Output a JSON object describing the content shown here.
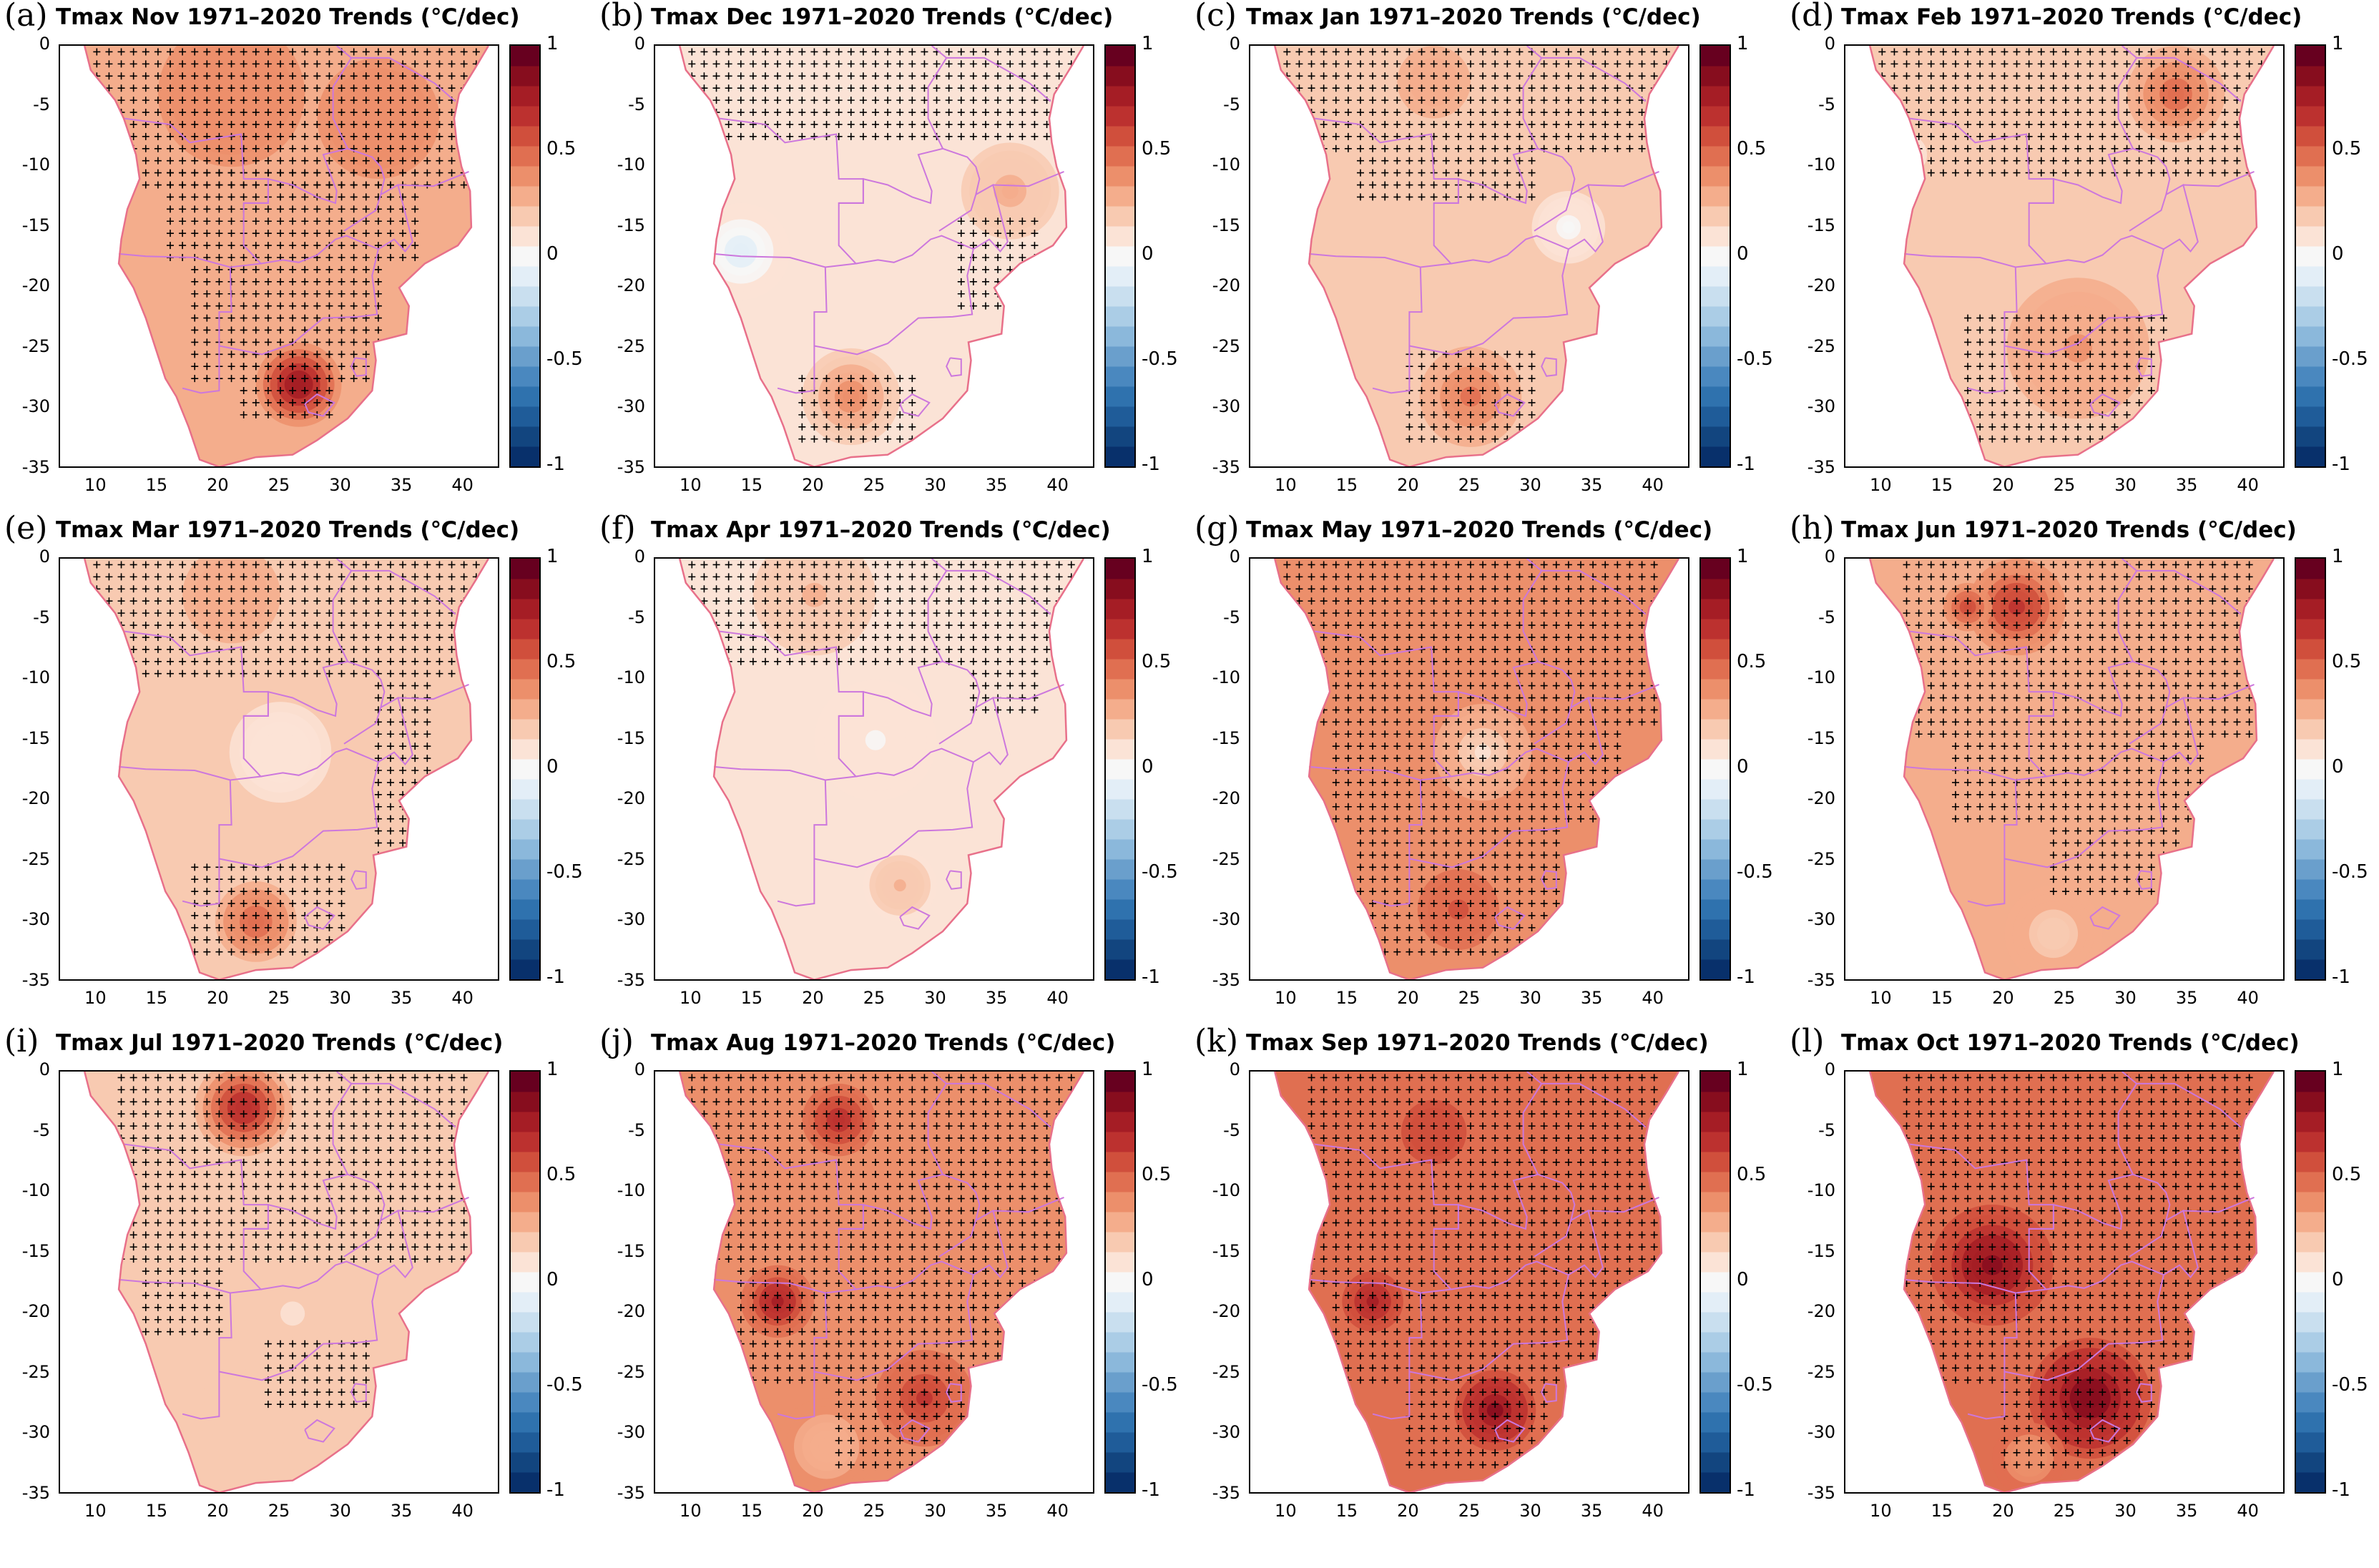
{
  "figure": {
    "x_ticks": [
      "10",
      "15",
      "20",
      "25",
      "30",
      "35",
      "40"
    ],
    "y_ticks": [
      "0",
      "-5",
      "-10",
      "-15",
      "-20",
      "-25",
      "-30",
      "-35"
    ],
    "colorbar_ticks": [
      "1",
      "0.5",
      "0",
      "-0.5",
      "-1"
    ],
    "colors": {
      "ocean": "#ffffff",
      "border": "#cc77dd",
      "coast": "#e8708a",
      "stipple": "#000000"
    },
    "colorbar_scale": [
      "#08306b",
      "#12457f",
      "#1f5c99",
      "#2f72ae",
      "#4a88bf",
      "#6a9fcc",
      "#8bb8db",
      "#abcde6",
      "#c9dfef",
      "#e3eef7",
      "#f7f7f7",
      "#fbe3d6",
      "#f8cab1",
      "#f4ad8c",
      "#ec8f6b",
      "#e06f51",
      "#d04f3c",
      "#bc312f",
      "#a51d25",
      "#870d1e",
      "#67001f"
    ]
  },
  "panels": [
    {
      "letter": "(a)",
      "title": "Tmax Nov 1971–2020 Trends (℃/dec)",
      "base": 0.34,
      "hotspots": [
        {
          "lon": 26.5,
          "lat": -28,
          "r": 3.5,
          "v": 0.5
        },
        {
          "lon": 21,
          "lat": -4,
          "r": 6,
          "v": 0.1
        },
        {
          "lon": 33,
          "lat": -6,
          "r": 5,
          "v": 0.1
        }
      ],
      "stipple": [
        [
          0,
          -12,
          10,
          42
        ],
        [
          -10,
          -18,
          16,
          36
        ],
        [
          -18,
          -28,
          18,
          33
        ],
        [
          -25,
          -31,
          22,
          29
        ]
      ]
    },
    {
      "letter": "(b)",
      "title": "Tmax Dec 1971–2020 Trends (℃/dec)",
      "base": 0.14,
      "hotspots": [
        {
          "lon": 14,
          "lat": -17,
          "r": 4,
          "v": -0.25
        },
        {
          "lon": 23,
          "lat": -29,
          "r": 4,
          "v": 0.3
        },
        {
          "lon": 36,
          "lat": -12,
          "r": 4,
          "v": 0.15
        }
      ],
      "stipple": [
        [
          0,
          -8,
          10,
          42
        ],
        [
          -14,
          -22,
          32,
          38
        ],
        [
          -27,
          -33,
          19,
          28
        ]
      ]
    },
    {
      "letter": "(c)",
      "title": "Tmax Jan 1971–2020 Trends (℃/dec)",
      "base": 0.15,
      "hotspots": [
        {
          "lon": 25,
          "lat": -29,
          "r": 5,
          "v": 0.3
        },
        {
          "lon": 22,
          "lat": -3,
          "r": 6,
          "v": 0.15
        },
        {
          "lon": 33,
          "lat": -15,
          "r": 3,
          "v": -0.15
        }
      ],
      "stipple": [
        [
          0,
          -9,
          10,
          42
        ],
        [
          -9,
          -13,
          16,
          30
        ],
        [
          -25,
          -33,
          20,
          30
        ]
      ]
    },
    {
      "letter": "(d)",
      "title": "Tmax Feb 1971–2020 Trends (℃/dec)",
      "base": 0.2,
      "hotspots": [
        {
          "lon": 34,
          "lat": -4,
          "r": 4,
          "v": 0.3
        },
        {
          "lon": 12,
          "lat": -9,
          "r": 2,
          "v": -0.2
        },
        {
          "lon": 26,
          "lat": -25,
          "r": 7,
          "v": 0.15
        }
      ],
      "stipple": [
        [
          0,
          -11,
          10,
          42
        ],
        [
          -22,
          -33,
          17,
          33
        ]
      ]
    },
    {
      "letter": "(e)",
      "title": "Tmax Mar 1971–2020 Trends (℃/dec)",
      "base": 0.18,
      "hotspots": [
        {
          "lon": 23,
          "lat": -30,
          "r": 4,
          "v": 0.35
        },
        {
          "lon": 21,
          "lat": -3,
          "r": 6,
          "v": 0.15
        },
        {
          "lon": 25,
          "lat": -16,
          "r": 5,
          "v": -0.1
        }
      ],
      "stipple": [
        [
          0,
          -10,
          10,
          42
        ],
        [
          -10,
          -25,
          33,
          37
        ],
        [
          -25,
          -33,
          18,
          30
        ]
      ]
    },
    {
      "letter": "(f)",
      "title": "Tmax Apr 1971–2020 Trends (℃/dec)",
      "base": 0.12,
      "hotspots": [
        {
          "lon": 20,
          "lat": -3,
          "r": 6,
          "v": 0.15
        },
        {
          "lon": 25,
          "lat": -15,
          "r": 5,
          "v": -0.08
        },
        {
          "lon": 27,
          "lat": -27,
          "r": 3,
          "v": 0.15
        }
      ],
      "stipple": [
        [
          0,
          -9,
          10,
          42
        ],
        [
          -9,
          -13,
          33,
          38
        ]
      ]
    },
    {
      "letter": "(g)",
      "title": "Tmax May 1971–2020 Trends (℃/dec)",
      "base": 0.38,
      "hotspots": [
        {
          "lon": 24,
          "lat": -29,
          "r": 5,
          "v": 0.2
        },
        {
          "lon": 26,
          "lat": -16,
          "r": 4,
          "v": -0.25
        }
      ],
      "stipple": [
        [
          0,
          -14,
          10,
          40
        ],
        [
          -14,
          -22,
          14,
          37
        ],
        [
          -22,
          -33,
          16,
          32
        ]
      ]
    },
    {
      "letter": "(h)",
      "title": "Tmax Jun 1971–2020 Trends (℃/dec)",
      "base": 0.32,
      "hotspots": [
        {
          "lon": 21,
          "lat": -4,
          "r": 4,
          "v": 0.35
        },
        {
          "lon": 17,
          "lat": -4,
          "r": 2,
          "v": 0.3
        },
        {
          "lon": 24,
          "lat": -31,
          "r": 4,
          "v": -0.12
        }
      ],
      "stipple": [
        [
          0,
          -15,
          12,
          40
        ],
        [
          -15,
          -22,
          16,
          36
        ],
        [
          -22,
          -28,
          24,
          34
        ]
      ]
    },
    {
      "letter": "(i)",
      "title": "Tmax Jul 1971–2020 Trends (℃/dec)",
      "base": 0.24,
      "hotspots": [
        {
          "lon": 22,
          "lat": -3,
          "r": 4,
          "v": 0.5
        },
        {
          "lon": 26,
          "lat": -20,
          "r": 6,
          "v": -0.1
        },
        {
          "lon": 22,
          "lat": -30,
          "r": 5,
          "v": -0.05
        }
      ],
      "stipple": [
        [
          0,
          -16,
          12,
          40
        ],
        [
          -16,
          -22,
          14,
          20
        ],
        [
          -22,
          -28,
          24,
          32
        ]
      ]
    },
    {
      "letter": "(j)",
      "title": "Tmax Aug 1971–2020 Trends (℃/dec)",
      "base": 0.42,
      "hotspots": [
        {
          "lon": 17,
          "lat": -19,
          "r": 3,
          "v": 0.35
        },
        {
          "lon": 22,
          "lat": -4,
          "r": 3,
          "v": 0.3
        },
        {
          "lon": 29,
          "lat": -27,
          "r": 4,
          "v": 0.25
        },
        {
          "lon": 21,
          "lat": -31,
          "r": 4,
          "v": -0.15
        }
      ],
      "stipple": [
        [
          0,
          -16,
          10,
          42
        ],
        [
          -16,
          -26,
          14,
          38
        ],
        [
          -26,
          -33,
          22,
          32
        ]
      ]
    },
    {
      "letter": "(k)",
      "title": "Tmax Sep 1971–2020 Trends (℃/dec)",
      "base": 0.48,
      "hotspots": [
        {
          "lon": 27,
          "lat": -28,
          "r": 4,
          "v": 0.4
        },
        {
          "lon": 17,
          "lat": -19,
          "r": 3,
          "v": 0.3
        },
        {
          "lon": 22,
          "lat": -5,
          "r": 4,
          "v": 0.15
        }
      ],
      "stipple": [
        [
          0,
          -18,
          12,
          40
        ],
        [
          -18,
          -26,
          14,
          38
        ],
        [
          -26,
          -33,
          20,
          31
        ]
      ]
    },
    {
      "letter": "(l)",
      "title": "Tmax Oct 1971–2020 Trends (℃/dec)",
      "base": 0.52,
      "hotspots": [
        {
          "lon": 19,
          "lat": -16,
          "r": 5,
          "v": 0.35
        },
        {
          "lon": 27,
          "lat": -27,
          "r": 5,
          "v": 0.4
        },
        {
          "lon": 22,
          "lat": -32,
          "r": 3,
          "v": -0.15
        }
      ],
      "stipple": [
        [
          0,
          -20,
          12,
          40
        ],
        [
          -20,
          -26,
          14,
          37
        ],
        [
          -26,
          -33,
          20,
          32
        ]
      ]
    }
  ]
}
